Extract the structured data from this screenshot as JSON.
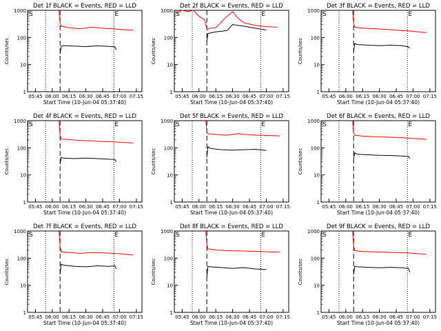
{
  "chart_data": [
    {
      "title": "Det 1f BLACK = Events, RED = LLD",
      "ylabel": "Counts/sec",
      "xlabel": "Start Time (10-Jun-04 05:37:40)",
      "type": "line",
      "yscale": "log",
      "ylim": [
        1,
        1000
      ],
      "y_ticks": [
        "1",
        "10",
        "100",
        "1000"
      ],
      "x_ticks": [
        "05:45",
        "06:00",
        "06:15",
        "06:30",
        "06:45",
        "07:00",
        "07:15"
      ],
      "markers": {
        "S": "06:56",
        "E": "06:57"
      },
      "colors": {
        "events": "#000000",
        "lld": "#ff0000"
      },
      "series": [
        {
          "name": "BLACK = Events",
          "color": "#000000",
          "x": [
            "06:07",
            "06:08",
            "06:10",
            "06:20",
            "06:30",
            "06:40",
            "06:50",
            "06:56",
            "06:57"
          ],
          "values": [
            25,
            48,
            50,
            48,
            46,
            49,
            47,
            45,
            35
          ]
        },
        {
          "name": "RED = LLD",
          "color": "#ff0000",
          "x": [
            "06:06",
            "06:07",
            "06:08",
            "06:15",
            "06:25",
            "06:35",
            "06:45",
            "06:55",
            "07:05",
            "07:12"
          ],
          "values": [
            1000,
            340,
            260,
            230,
            210,
            240,
            220,
            210,
            190,
            185
          ]
        }
      ]
    },
    {
      "title": "Det 2f BLACK = Events, RED = LLD",
      "ylabel": "Counts/sec",
      "xlabel": "Start Time (10-Jun-04 05:37:40)",
      "type": "line",
      "yscale": "log",
      "ylim": [
        1,
        1000
      ],
      "y_ticks": [
        "1",
        "10",
        "100",
        "1000"
      ],
      "x_ticks": [
        "05:45",
        "06:00",
        "06:15",
        "06:30",
        "06:45",
        "07:00",
        "07:15"
      ],
      "markers": {
        "S": "06:56",
        "E": "06:57"
      },
      "colors": {
        "events": "#000000",
        "lld": "#ff0000"
      },
      "series": [
        {
          "name": "BLACK = Events",
          "color": "#000000",
          "x": [
            "06:07",
            "06:08",
            "06:15",
            "06:25",
            "06:30",
            "06:40",
            "06:50",
            "07:00"
          ],
          "values": [
            70,
            140,
            160,
            180,
            300,
            260,
            220,
            190
          ]
        },
        {
          "name": "RED = LLD",
          "color": "#ff0000",
          "x": [
            "05:40",
            "05:45",
            "05:50",
            "05:55",
            "06:00",
            "06:05",
            "06:07",
            "06:10",
            "06:15",
            "06:25",
            "06:30",
            "06:35",
            "06:40",
            "06:50",
            "07:00",
            "07:10"
          ],
          "values": [
            800,
            1000,
            900,
            1000,
            600,
            450,
            200,
            220,
            230,
            600,
            900,
            500,
            350,
            280,
            250,
            240
          ]
        }
      ]
    },
    {
      "title": "Det 3f BLACK = Events, RED = LLD",
      "ylabel": "Counts/sec",
      "xlabel": "Start Time (10-Jun-04 05:37:40)",
      "type": "line",
      "yscale": "log",
      "ylim": [
        1,
        1000
      ],
      "y_ticks": [
        "1",
        "10",
        "100",
        "1000"
      ],
      "x_ticks": [
        "05:45",
        "06:00",
        "06:15",
        "06:30",
        "06:45",
        "07:00",
        "07:15"
      ],
      "markers": {
        "S": "06:56",
        "E": "06:57"
      },
      "colors": {
        "events": "#000000",
        "lld": "#ff0000"
      },
      "series": [
        {
          "name": "BLACK = Events",
          "color": "#000000",
          "x": [
            "06:07",
            "06:08",
            "06:10",
            "06:20",
            "06:30",
            "06:40",
            "06:50",
            "06:56",
            "06:57"
          ],
          "values": [
            30,
            60,
            55,
            52,
            50,
            52,
            50,
            45,
            40
          ]
        },
        {
          "name": "RED = LLD",
          "color": "#ff0000",
          "x": [
            "06:06",
            "06:07",
            "06:08",
            "06:15",
            "06:25",
            "06:35",
            "06:45",
            "06:55",
            "07:05",
            "07:12"
          ],
          "values": [
            1000,
            330,
            240,
            220,
            210,
            200,
            185,
            175,
            160,
            150
          ]
        }
      ]
    },
    {
      "title": "Det 4f BLACK = Events, RED = LLD",
      "ylabel": "Counts/sec",
      "xlabel": "Start Time (10-Jun-04 05:37:40)",
      "type": "line",
      "yscale": "log",
      "ylim": [
        1,
        1000
      ],
      "y_ticks": [
        "1",
        "10",
        "100",
        "1000"
      ],
      "x_ticks": [
        "05:45",
        "06:00",
        "06:15",
        "06:30",
        "06:45",
        "07:00",
        "07:15"
      ],
      "markers": {
        "S": "06:56",
        "E": "06:57"
      },
      "colors": {
        "events": "#000000",
        "lld": "#ff0000"
      },
      "series": [
        {
          "name": "BLACK = Events",
          "color": "#000000",
          "x": [
            "06:07",
            "06:08",
            "06:10",
            "06:20",
            "06:30",
            "06:40",
            "06:50",
            "06:56",
            "06:57"
          ],
          "values": [
            25,
            45,
            42,
            40,
            42,
            40,
            38,
            37,
            30
          ]
        },
        {
          "name": "RED = LLD",
          "color": "#ff0000",
          "x": [
            "06:06",
            "06:07",
            "06:08",
            "06:15",
            "06:25",
            "06:35",
            "06:45",
            "06:55",
            "07:05",
            "07:12"
          ],
          "values": [
            1000,
            290,
            210,
            200,
            185,
            180,
            170,
            165,
            155,
            150
          ]
        }
      ]
    },
    {
      "title": "Det 5f BLACK = Events, RED = LLD",
      "ylabel": "Counts/sec",
      "xlabel": "Start Time (10-Jun-04 05:37:40)",
      "type": "line",
      "yscale": "log",
      "ylim": [
        1,
        1000
      ],
      "y_ticks": [
        "1",
        "10",
        "100",
        "1000"
      ],
      "x_ticks": [
        "05:45",
        "06:00",
        "06:15",
        "06:30",
        "06:45",
        "07:00",
        "07:15"
      ],
      "markers": {
        "S": "06:56",
        "E": "06:57"
      },
      "colors": {
        "events": "#000000",
        "lld": "#ff0000"
      },
      "series": [
        {
          "name": "BLACK = Events",
          "color": "#000000",
          "x": [
            "06:07",
            "06:08",
            "06:10",
            "06:20",
            "06:30",
            "06:40",
            "06:50",
            "07:00"
          ],
          "values": [
            45,
            110,
            95,
            85,
            82,
            85,
            88,
            80
          ]
        },
        {
          "name": "RED = LLD",
          "color": "#ff0000",
          "x": [
            "06:06",
            "06:07",
            "06:08",
            "06:15",
            "06:25",
            "06:35",
            "06:45",
            "06:55",
            "07:05",
            "07:12"
          ],
          "values": [
            1000,
            380,
            330,
            310,
            290,
            330,
            300,
            290,
            280,
            275
          ]
        }
      ]
    },
    {
      "title": "Det 6f BLACK = Events, RED = LLD",
      "ylabel": "Counts/sec",
      "xlabel": "Start Time (10-Jun-04 05:37:40)",
      "type": "line",
      "yscale": "log",
      "ylim": [
        1,
        1000
      ],
      "y_ticks": [
        "1",
        "10",
        "100",
        "1000"
      ],
      "x_ticks": [
        "05:45",
        "06:00",
        "06:15",
        "06:30",
        "06:45",
        "07:00",
        "07:15"
      ],
      "markers": {
        "S": "06:56",
        "E": "06:57"
      },
      "colors": {
        "events": "#000000",
        "lld": "#ff0000"
      },
      "series": [
        {
          "name": "BLACK = Events",
          "color": "#000000",
          "x": [
            "06:07",
            "06:08",
            "06:10",
            "06:20",
            "06:30",
            "06:40",
            "06:50",
            "06:56",
            "06:57"
          ],
          "values": [
            40,
            65,
            58,
            55,
            53,
            52,
            50,
            48,
            40
          ]
        },
        {
          "name": "RED = LLD",
          "color": "#ff0000",
          "x": [
            "06:06",
            "06:07",
            "06:08",
            "06:15",
            "06:25",
            "06:35",
            "06:45",
            "06:55",
            "07:05",
            "07:12"
          ],
          "values": [
            1000,
            360,
            290,
            270,
            255,
            250,
            240,
            230,
            215,
            205
          ]
        }
      ]
    },
    {
      "title": "Det 7f BLACK = Events, RED = LLD",
      "ylabel": "Counts/sec",
      "xlabel": "Start Time (10-Jun-04 05:37:40)",
      "type": "line",
      "yscale": "log",
      "ylim": [
        1,
        1000
      ],
      "y_ticks": [
        "1",
        "10",
        "100",
        "1000"
      ],
      "x_ticks": [
        "05:45",
        "06:00",
        "06:15",
        "06:30",
        "06:45",
        "07:00",
        "07:15"
      ],
      "markers": {
        "S": "06:56",
        "E": "06:57"
      },
      "colors": {
        "events": "#000000",
        "lld": "#ff0000"
      },
      "series": [
        {
          "name": "BLACK = Events",
          "color": "#000000",
          "x": [
            "06:07",
            "06:08",
            "06:10",
            "06:20",
            "06:30",
            "06:40",
            "06:50",
            "06:56",
            "06:57"
          ],
          "values": [
            25,
            60,
            55,
            50,
            48,
            52,
            50,
            52,
            40
          ]
        },
        {
          "name": "RED = LLD",
          "color": "#ff0000",
          "x": [
            "06:06",
            "06:07",
            "06:08",
            "06:15",
            "06:25",
            "06:35",
            "06:45",
            "06:55",
            "07:05",
            "07:12"
          ],
          "values": [
            1000,
            280,
            170,
            160,
            150,
            160,
            155,
            150,
            140,
            130
          ]
        }
      ]
    },
    {
      "title": "Det 8f BLACK = Events, RED = LLD",
      "ylabel": "Counts/sec",
      "xlabel": "Start Time (10-Jun-04 05:37:40)",
      "type": "line",
      "yscale": "log",
      "ylim": [
        1,
        1000
      ],
      "y_ticks": [
        "1",
        "10",
        "100",
        "1000"
      ],
      "x_ticks": [
        "05:45",
        "06:00",
        "06:15",
        "06:30",
        "06:45",
        "07:00",
        "07:15"
      ],
      "markers": {
        "S": "06:56",
        "E": "06:57"
      },
      "colors": {
        "events": "#000000",
        "lld": "#ff0000"
      },
      "series": [
        {
          "name": "BLACK = Events",
          "color": "#000000",
          "x": [
            "06:07",
            "06:08",
            "06:10",
            "06:20",
            "06:30",
            "06:40",
            "06:50",
            "07:00"
          ],
          "values": [
            20,
            50,
            48,
            45,
            42,
            45,
            40,
            38
          ]
        },
        {
          "name": "RED = LLD",
          "color": "#ff0000",
          "x": [
            "06:06",
            "06:07",
            "06:08",
            "06:15",
            "06:25",
            "06:35",
            "06:45",
            "06:55",
            "07:05",
            "07:12"
          ],
          "values": [
            1000,
            320,
            220,
            200,
            190,
            185,
            180,
            175,
            170,
            165
          ]
        }
      ]
    },
    {
      "title": "Det 9f BLACK = Events, RED = LLD",
      "ylabel": "Counts/sec",
      "xlabel": "Start Time (10-Jun-04 05:37:40)",
      "type": "line",
      "yscale": "log",
      "ylim": [
        1,
        1000
      ],
      "y_ticks": [
        "1",
        "10",
        "100",
        "1000"
      ],
      "x_ticks": [
        "05:45",
        "06:00",
        "06:15",
        "06:30",
        "06:45",
        "07:00",
        "07:15"
      ],
      "markers": {
        "S": "06:56",
        "E": "06:57"
      },
      "colors": {
        "events": "#000000",
        "lld": "#ff0000"
      },
      "series": [
        {
          "name": "BLACK = Events",
          "color": "#000000",
          "x": [
            "06:07",
            "06:08",
            "06:10",
            "06:20",
            "06:30",
            "06:40",
            "06:50",
            "06:56",
            "06:57"
          ],
          "values": [
            25,
            50,
            48,
            46,
            44,
            46,
            44,
            42,
            30
          ]
        },
        {
          "name": "RED = LLD",
          "color": "#ff0000",
          "x": [
            "06:06",
            "06:07",
            "06:08",
            "06:15",
            "06:25",
            "06:35",
            "06:45",
            "06:55",
            "07:05",
            "07:12"
          ],
          "values": [
            1000,
            280,
            190,
            175,
            170,
            165,
            160,
            155,
            145,
            140
          ]
        }
      ]
    }
  ]
}
